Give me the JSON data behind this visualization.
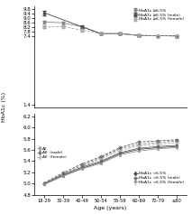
{
  "x_labels": [
    "18-29",
    "30-39",
    "40-49",
    "50-54",
    "55-59",
    "60-69",
    "70-79",
    "≥80"
  ],
  "x_positions": [
    0,
    1,
    2,
    3,
    4,
    5,
    6,
    7
  ],
  "upper_panel": {
    "ylim": [
      1.2,
      10.0
    ],
    "yticks": [
      1.4,
      7.4,
      7.8,
      8.2,
      8.6,
      9.0,
      9.4,
      9.8
    ],
    "series": {
      "all": {
        "values": [
          8.65,
          8.56,
          8.22,
          7.62,
          7.62,
          7.46,
          7.44,
          7.42
        ],
        "errors": [
          0.12,
          0.1,
          0.08,
          0.07,
          0.07,
          0.06,
          0.06,
          0.07
        ],
        "color": "#888888",
        "linestyle": "-",
        "marker": "s",
        "label": "HbA1c ≥6.5%"
      },
      "male": {
        "values": [
          9.45,
          null,
          8.22,
          7.62,
          7.62,
          7.46,
          7.44,
          7.42
        ],
        "errors": [
          0.2,
          null,
          0.1,
          0.08,
          0.07,
          0.07,
          0.06,
          0.07
        ],
        "color": "#444444",
        "linestyle": "-",
        "marker": "^",
        "label": "HbA1c ≥6.5% (male)"
      },
      "female": {
        "values": [
          8.2,
          8.24,
          7.92,
          7.62,
          7.62,
          7.46,
          7.44,
          7.42
        ],
        "errors": [
          0.12,
          0.1,
          0.1,
          0.08,
          0.07,
          0.07,
          0.06,
          0.07
        ],
        "color": "#aaaaaa",
        "linestyle": "--",
        "marker": "o",
        "label": "HbA1c ≥6.5% (female)"
      }
    }
  },
  "lower_panel": {
    "ylim": [
      4.85,
      6.25
    ],
    "yticks": [
      4.8,
      5.0,
      5.2,
      5.4,
      5.6,
      5.8,
      6.0,
      6.2
    ],
    "series": {
      "all_all": {
        "values": [
          5.0,
          5.17,
          5.32,
          5.46,
          5.62,
          5.7,
          5.73,
          5.76
        ],
        "errors": [
          0.01,
          0.01,
          0.01,
          0.01,
          0.01,
          0.01,
          0.02,
          0.02
        ],
        "color": "#888888",
        "linestyle": "-",
        "marker": "o",
        "markerfacecolor": "none",
        "label": "◇ All"
      },
      "all_male": {
        "values": [
          5.01,
          5.19,
          5.35,
          5.48,
          5.64,
          5.74,
          5.76,
          5.78
        ],
        "errors": [
          0.01,
          0.01,
          0.01,
          0.01,
          0.01,
          0.02,
          0.02,
          0.02
        ],
        "color": "#555555",
        "linestyle": "-",
        "marker": "o",
        "markerfacecolor": "none",
        "label": "◆ All  (male)"
      },
      "all_female": {
        "values": [
          4.99,
          5.15,
          5.3,
          5.44,
          5.59,
          5.67,
          5.7,
          5.73
        ],
        "errors": [
          0.01,
          0.01,
          0.01,
          0.01,
          0.01,
          0.01,
          0.02,
          0.02
        ],
        "color": "#aaaaaa",
        "linestyle": "-",
        "marker": "o",
        "markerfacecolor": "none",
        "label": "◇ All  (female)"
      },
      "low_all": {
        "values": [
          4.99,
          5.14,
          5.27,
          5.38,
          5.53,
          5.61,
          5.64,
          5.66
        ],
        "errors": [
          0.01,
          0.01,
          0.01,
          0.01,
          0.01,
          0.01,
          0.01,
          0.02
        ],
        "color": "#444444",
        "linestyle": "-",
        "marker": "s",
        "markerfacecolor": "#444444",
        "label": "HbA1c <6.5%"
      },
      "low_male": {
        "values": [
          4.99,
          5.16,
          5.29,
          5.4,
          5.55,
          5.63,
          5.66,
          5.68
        ],
        "errors": [
          0.01,
          0.01,
          0.01,
          0.01,
          0.01,
          0.01,
          0.01,
          0.02
        ],
        "color": "#666666",
        "linestyle": "-",
        "marker": "s",
        "markerfacecolor": "#666666",
        "label": "HbA1c <6.5% (male)"
      },
      "low_female": {
        "values": [
          4.98,
          5.13,
          5.26,
          5.36,
          5.51,
          5.58,
          5.62,
          5.64
        ],
        "errors": [
          0.01,
          0.01,
          0.01,
          0.01,
          0.01,
          0.01,
          0.01,
          0.02
        ],
        "color": "#999999",
        "linestyle": "-",
        "marker": "s",
        "markerfacecolor": "#999999",
        "label": "HbA1c <6.5% (female)"
      }
    }
  },
  "xlabel": "Age (years)",
  "ylabel": "HbA1c (%)",
  "background_color": "#ffffff",
  "font_size": 4.5
}
